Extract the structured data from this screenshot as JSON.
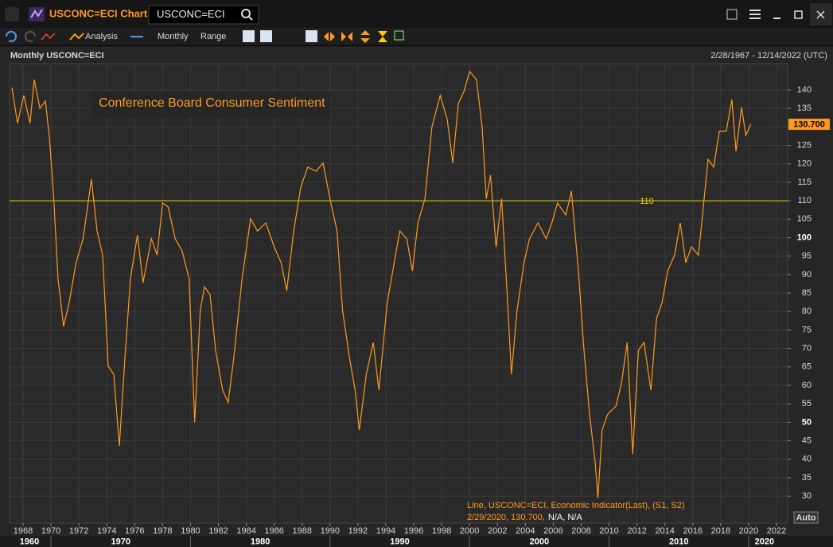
{
  "window": {
    "title": "USCONC=ECI Chart",
    "search": "USCONC=ECI"
  },
  "toolbar": {
    "analysis": "Analysis",
    "interval": "Monthly",
    "range": "Range"
  },
  "chart_header": {
    "left": "Monthly USCONC=ECI",
    "right": "2/28/1967 - 12/14/2022 (UTC)"
  },
  "auto_button": "Auto",
  "chart_data": {
    "type": "line",
    "title": "Conference Board Consumer Sentiment",
    "legend_line": "Line, USCONC=ECI, Economic Indicator(Last), (S1, S2)",
    "legend_point": "2/29/2020, 130.700,",
    "legend_point_rest": "N/A, N/A",
    "color": "#ff9a1f",
    "reference_line": 110,
    "reference_color": "#e8d800",
    "last_value": 130.7,
    "last_value_label": "130.700",
    "grid": true,
    "xlim": [
      1967.03,
      2022.8
    ],
    "ylim": [
      22.7,
      147.1
    ],
    "xticks": [
      1968,
      1970,
      1972,
      1974,
      1976,
      1978,
      1980,
      1982,
      1984,
      1986,
      1988,
      1990,
      1992,
      1994,
      1996,
      1998,
      2000,
      2002,
      2004,
      2006,
      2008,
      2010,
      2012,
      2014,
      2016,
      2018,
      2020,
      2022
    ],
    "decade_ticks": [
      1960,
      1970,
      1980,
      1990,
      2000,
      2010,
      2020
    ],
    "yticks": [
      30,
      35,
      40,
      45,
      50,
      55,
      60,
      65,
      70,
      75,
      80,
      85,
      90,
      95,
      100,
      105,
      110,
      115,
      120,
      125,
      130,
      135,
      140
    ],
    "bold_yticks": [
      50,
      100
    ],
    "x": [
      1967.2,
      1967.6,
      1968.05,
      1968.5,
      1968.8,
      1969.2,
      1969.6,
      1969.9,
      1970.2,
      1970.5,
      1970.9,
      1971.3,
      1971.8,
      1972.3,
      1972.9,
      1973.3,
      1973.7,
      1974.1,
      1974.5,
      1974.9,
      1975.3,
      1975.7,
      1976.2,
      1976.6,
      1977.2,
      1977.6,
      1978.0,
      1978.4,
      1978.9,
      1979.4,
      1979.9,
      1980.3,
      1980.7,
      1981.0,
      1981.4,
      1981.8,
      1982.3,
      1982.7,
      1983.1,
      1983.7,
      1984.3,
      1984.8,
      1985.4,
      1986.0,
      1986.5,
      1986.9,
      1987.4,
      1987.9,
      1988.4,
      1989.0,
      1989.5,
      1990.0,
      1990.5,
      1990.9,
      1991.4,
      1991.8,
      1992.1,
      1992.6,
      1993.1,
      1993.5,
      1994.1,
      1994.5,
      1995.0,
      1995.5,
      1995.9,
      1996.3,
      1996.8,
      1997.3,
      1997.9,
      1998.4,
      1998.8,
      1999.2,
      1999.6,
      2000.0,
      2000.5,
      2000.9,
      2001.2,
      2001.5,
      2001.9,
      2002.3,
      2002.7,
      2003.0,
      2003.4,
      2003.9,
      2004.3,
      2004.9,
      2005.5,
      2005.9,
      2006.3,
      2006.9,
      2007.3,
      2007.8,
      2008.2,
      2008.6,
      2009.0,
      2009.2,
      2009.5,
      2009.9,
      2010.5,
      2010.9,
      2011.3,
      2011.7,
      2012.1,
      2012.5,
      2013.0,
      2013.4,
      2013.8,
      2014.2,
      2014.7,
      2015.1,
      2015.5,
      2015.9,
      2016.4,
      2016.7,
      2017.1,
      2017.5,
      2017.9,
      2018.4,
      2018.8,
      2019.1,
      2019.5,
      2019.8,
      2020.16
    ],
    "values": [
      140.6,
      131,
      138.5,
      131,
      142.8,
      135,
      137,
      126.6,
      110.5,
      88.9,
      76,
      82.4,
      93.2,
      99.7,
      115.8,
      101.8,
      95.3,
      65.2,
      63,
      43.6,
      67.3,
      89,
      100.7,
      87.8,
      99.7,
      95.3,
      109.4,
      108.3,
      99.7,
      96.4,
      88.9,
      50,
      80.2,
      86.7,
      84.6,
      69.5,
      58.7,
      55.4,
      67.3,
      88.9,
      105.1,
      101.8,
      104,
      97.5,
      93.2,
      85.6,
      101.8,
      113.7,
      119.1,
      118,
      120.2,
      110.5,
      101.8,
      80.2,
      67.3,
      58.7,
      47.9,
      63,
      71.6,
      58.7,
      82.4,
      91,
      101.8,
      99.7,
      91,
      104,
      110.5,
      129.9,
      138.5,
      132,
      120.2,
      136.3,
      139.6,
      145,
      142.8,
      129.9,
      110.5,
      116.9,
      97.5,
      110.5,
      84.6,
      63,
      80.2,
      93.2,
      99.7,
      104,
      99.7,
      104,
      109.4,
      106.1,
      112.6,
      91,
      69.5,
      52.2,
      39.3,
      29.5,
      47.9,
      52.2,
      54.4,
      60.8,
      71.6,
      41.4,
      69.5,
      71.6,
      58.7,
      78.1,
      82.4,
      91,
      95.3,
      104,
      93.2,
      97.5,
      95.3,
      106.1,
      121.2,
      119.1,
      128.8,
      128.8,
      137.4,
      123.4,
      135.3,
      127.7,
      130.7
    ]
  }
}
